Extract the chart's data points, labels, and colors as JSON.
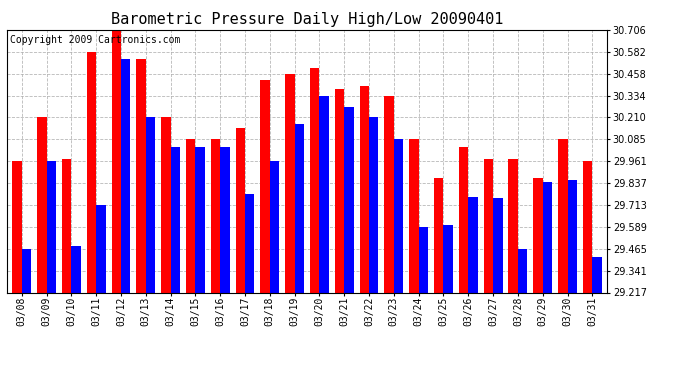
{
  "title": "Barometric Pressure Daily High/Low 20090401",
  "copyright": "Copyright 2009 Cartronics.com",
  "dates": [
    "03/08",
    "03/09",
    "03/10",
    "03/11",
    "03/12",
    "03/13",
    "03/14",
    "03/15",
    "03/16",
    "03/17",
    "03/18",
    "03/19",
    "03/20",
    "03/21",
    "03/22",
    "03/23",
    "03/24",
    "03/25",
    "03/26",
    "03/27",
    "03/28",
    "03/29",
    "03/30",
    "03/31"
  ],
  "highs": [
    29.961,
    30.21,
    29.975,
    30.582,
    30.706,
    30.54,
    30.21,
    30.085,
    30.085,
    30.15,
    30.42,
    30.458,
    30.49,
    30.37,
    30.39,
    30.334,
    30.085,
    29.865,
    30.04,
    29.975,
    29.975,
    29.865,
    30.085,
    29.961
  ],
  "lows": [
    29.465,
    29.961,
    29.48,
    29.713,
    30.54,
    30.21,
    30.04,
    30.04,
    30.04,
    29.775,
    29.961,
    30.175,
    30.334,
    30.27,
    30.21,
    30.085,
    29.59,
    29.6,
    29.76,
    29.755,
    29.465,
    29.845,
    29.855,
    29.42
  ],
  "ylim_min": 29.217,
  "ylim_max": 30.706,
  "yticks": [
    29.217,
    29.341,
    29.465,
    29.589,
    29.713,
    29.837,
    29.961,
    30.085,
    30.21,
    30.334,
    30.458,
    30.582,
    30.706
  ],
  "bar_width": 0.38,
  "high_color": "#ff0000",
  "low_color": "#0000ff",
  "bg_color": "#ffffff",
  "grid_color": "#b0b0b0",
  "title_fontsize": 11,
  "copyright_fontsize": 7
}
